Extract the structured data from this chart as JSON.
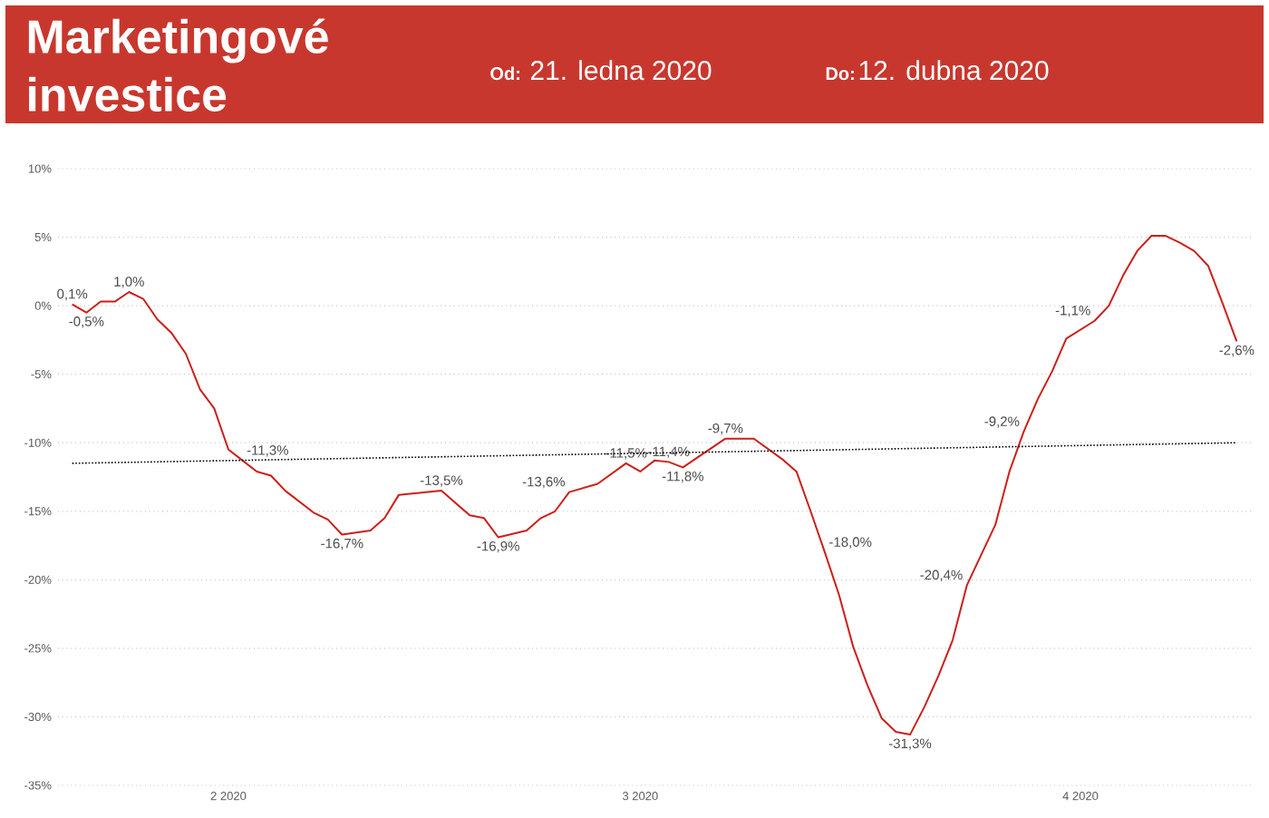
{
  "chart_data": {
    "type": "line",
    "title": "Marketingové investice",
    "annotations": [
      "Od:",
      "21. ledna 2020",
      "Do:",
      "12. dubna 2020"
    ],
    "xlim": [
      "2020-01-20",
      "2020-04-13"
    ],
    "xticks": [
      {
        "value": "2020-02-01",
        "label": "2 2020"
      },
      {
        "value": "2020-03-01",
        "label": "3 2020"
      },
      {
        "value": "2020-04-01",
        "label": "4 2020"
      }
    ],
    "ylim": [
      -35,
      10
    ],
    "yticks": [
      {
        "value": -35,
        "label": "-35%"
      },
      {
        "value": -30,
        "label": "-30%"
      },
      {
        "value": -25,
        "label": "-25%"
      },
      {
        "value": -20,
        "label": "-20%"
      },
      {
        "value": -15,
        "label": "-15%"
      },
      {
        "value": -10,
        "label": "-10%"
      },
      {
        "value": -5,
        "label": "-5%"
      },
      {
        "value": 0,
        "label": "0%"
      },
      {
        "value": 5,
        "label": "5%"
      },
      {
        "value": 10,
        "label": "10%"
      }
    ],
    "grid": "y",
    "series": [
      {
        "color": "#cc1f1a",
        "x": [
          "2020-01-21",
          "2020-01-22",
          "2020-01-23",
          "2020-01-24",
          "2020-01-25",
          "2020-01-26",
          "2020-01-27",
          "2020-01-28",
          "2020-01-29",
          "2020-01-30",
          "2020-01-31",
          "2020-02-01",
          "2020-02-02",
          "2020-02-03",
          "2020-02-04",
          "2020-02-05",
          "2020-02-07",
          "2020-02-08",
          "2020-02-09",
          "2020-02-11",
          "2020-02-12",
          "2020-02-13",
          "2020-02-16",
          "2020-02-18",
          "2020-02-19",
          "2020-02-20",
          "2020-02-22",
          "2020-02-23",
          "2020-02-24",
          "2020-02-25",
          "2020-02-27",
          "2020-02-29",
          "2020-03-01",
          "2020-03-02",
          "2020-03-03",
          "2020-03-04",
          "2020-03-07",
          "2020-03-09",
          "2020-03-11",
          "2020-03-12",
          "2020-03-13",
          "2020-03-14",
          "2020-03-15",
          "2020-03-16",
          "2020-03-17",
          "2020-03-18",
          "2020-03-19",
          "2020-03-20",
          "2020-03-21",
          "2020-03-22",
          "2020-03-23",
          "2020-03-24",
          "2020-03-26",
          "2020-03-27",
          "2020-03-28",
          "2020-03-29",
          "2020-03-30",
          "2020-03-31",
          "2020-04-02",
          "2020-04-03",
          "2020-04-04",
          "2020-04-05",
          "2020-04-06",
          "2020-04-07",
          "2020-04-08",
          "2020-04-09",
          "2020-04-10",
          "2020-04-11",
          "2020-04-12"
        ],
        "values": [
          0.1,
          -0.5,
          0.3,
          0.3,
          1.0,
          0.5,
          -1.0,
          -2.0,
          -3.5,
          -6.1,
          -7.5,
          -10.5,
          -11.3,
          -12.1,
          -12.4,
          -13.5,
          -15.1,
          -15.6,
          -16.7,
          -16.4,
          -15.5,
          -13.8,
          -13.5,
          -15.3,
          -15.5,
          -16.9,
          -16.4,
          -15.5,
          -15.0,
          -13.6,
          -13.0,
          -11.5,
          -12.1,
          -11.3,
          -11.4,
          -11.8,
          -9.7,
          -9.7,
          -11.2,
          -12.1,
          -15.0,
          -18.0,
          -21.1,
          -24.9,
          -27.7,
          -30.1,
          -31.1,
          -31.3,
          -29.3,
          -27.0,
          -24.4,
          -20.4,
          -16.0,
          -12.1,
          -9.2,
          -6.8,
          -4.8,
          -2.4,
          -1.1,
          0.0,
          2.2,
          4.0,
          5.1,
          5.1,
          4.6,
          4.0,
          2.9,
          0.2,
          -2.6
        ],
        "value_labels": [
          "0,1%",
          "-0,5%",
          null,
          null,
          "1,0%",
          null,
          null,
          null,
          null,
          null,
          null,
          null,
          "-11,3%",
          null,
          null,
          null,
          null,
          null,
          "-16,7%",
          null,
          null,
          null,
          "-13,5%",
          null,
          null,
          "-16,9%",
          null,
          null,
          null,
          "-13,6%",
          null,
          "-11,5%",
          null,
          null,
          "-11,4%",
          "-11,8%",
          "-9,7%",
          null,
          null,
          null,
          null,
          "-18,0%",
          null,
          null,
          null,
          null,
          null,
          "-31,3%",
          null,
          null,
          null,
          "-20,4%",
          null,
          null,
          "-9,2%",
          null,
          null,
          null,
          "-1,1%",
          null,
          null,
          null,
          null,
          null,
          null,
          null,
          null,
          null,
          "-2,6%"
        ]
      },
      {
        "type": "line",
        "color": "#000000",
        "line_style": "dotted",
        "x": [
          "2020-01-21",
          "2020-04-12"
        ],
        "values": [
          -11.5,
          -10.0
        ]
      }
    ]
  }
}
